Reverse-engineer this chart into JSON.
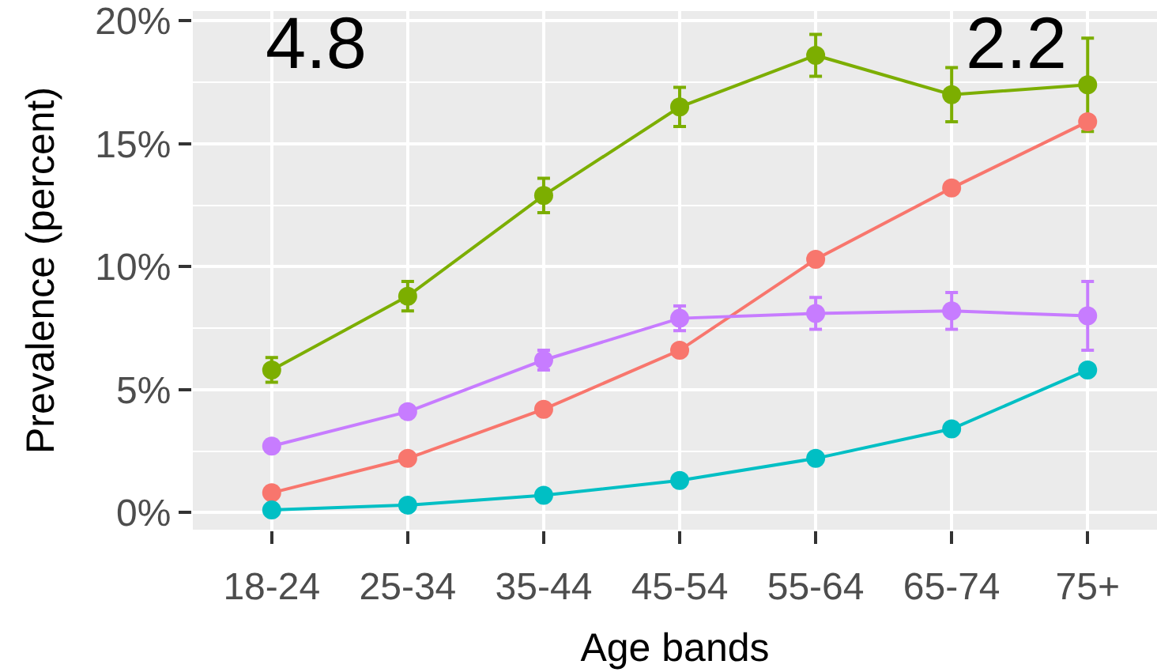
{
  "chart_data": {
    "type": "line",
    "xlabel": "Age bands",
    "ylabel": "Prevalence (percent)",
    "categories": [
      "18-24",
      "25-34",
      "35-44",
      "45-54",
      "55-64",
      "65-74",
      "75+"
    ],
    "series": [
      {
        "color": "#7cae00",
        "values": [
          5.8,
          8.8,
          12.9,
          16.5,
          18.6,
          17.0,
          17.4
        ],
        "errors": [
          0.5,
          0.6,
          0.7,
          0.8,
          0.85,
          1.1,
          1.9
        ]
      },
      {
        "color": "#f8766d",
        "values": [
          0.8,
          2.2,
          4.2,
          6.6,
          10.3,
          13.2,
          15.9
        ]
      },
      {
        "color": "#c77cff",
        "values": [
          2.7,
          4.1,
          6.2,
          7.9,
          8.1,
          8.2,
          8.0
        ],
        "errors": [
          null,
          null,
          0.4,
          0.5,
          0.65,
          0.75,
          1.4
        ]
      },
      {
        "color": "#00bfc4",
        "values": [
          0.1,
          0.3,
          0.7,
          1.3,
          2.2,
          3.4,
          5.8
        ]
      }
    ],
    "ylim": [
      -0.7,
      20.4
    ],
    "yticks": [
      {
        "value": 0,
        "label": "0%"
      },
      {
        "value": 5,
        "label": "5%"
      },
      {
        "value": 10,
        "label": "10%"
      },
      {
        "value": 15,
        "label": "15%"
      },
      {
        "value": 20,
        "label": "20%"
      }
    ],
    "grid": true,
    "marker": "circle",
    "line_style": "solid",
    "annotations": [
      "4.8",
      "2.2"
    ]
  }
}
